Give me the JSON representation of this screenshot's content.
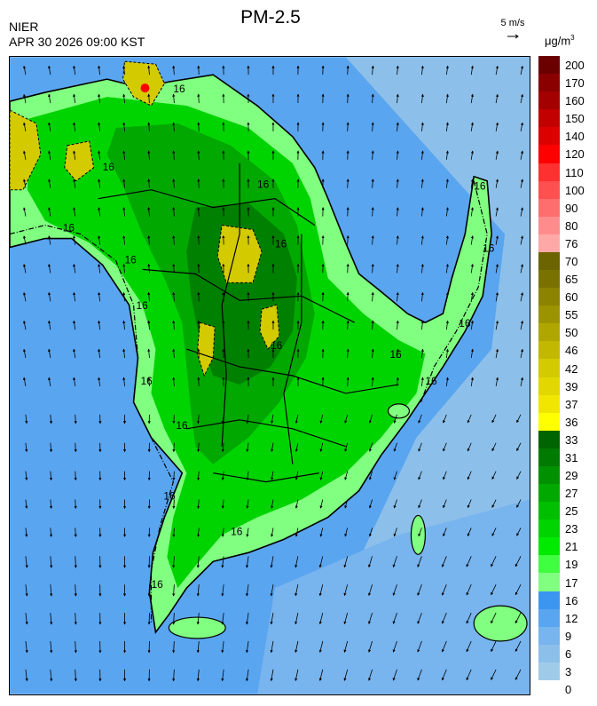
{
  "header": {
    "agency": "NIER",
    "datetime": "APR 30 2026 09:00 KST",
    "title": "PM-2.5",
    "wind_scale": "5 m/s",
    "unit_base": "μg/m",
    "unit_exp": "3"
  },
  "legend": {
    "levels": [
      {
        "label": "200",
        "color": "#6b0000"
      },
      {
        "label": "170",
        "color": "#8a0000"
      },
      {
        "label": "160",
        "color": "#a30000"
      },
      {
        "label": "150",
        "color": "#c20000"
      },
      {
        "label": "140",
        "color": "#dd0000"
      },
      {
        "label": "120",
        "color": "#ff0000"
      },
      {
        "label": "110",
        "color": "#ff3030"
      },
      {
        "label": "100",
        "color": "#ff5050"
      },
      {
        "label": "90",
        "color": "#ff6e6e"
      },
      {
        "label": "80",
        "color": "#ff8c8c"
      },
      {
        "label": "76",
        "color": "#ffa8a8"
      },
      {
        "label": "70",
        "color": "#6b6400"
      },
      {
        "label": "65",
        "color": "#7a7200"
      },
      {
        "label": "60",
        "color": "#8c8300"
      },
      {
        "label": "55",
        "color": "#9c9300"
      },
      {
        "label": "50",
        "color": "#b0a600"
      },
      {
        "label": "46",
        "color": "#c2b800"
      },
      {
        "label": "42",
        "color": "#d4ca00"
      },
      {
        "label": "39",
        "color": "#e2d800"
      },
      {
        "label": "37",
        "color": "#f0e600"
      },
      {
        "label": "36",
        "color": "#ffff00"
      },
      {
        "label": "33",
        "color": "#006400"
      },
      {
        "label": "31",
        "color": "#007a00"
      },
      {
        "label": "29",
        "color": "#009000"
      },
      {
        "label": "27",
        "color": "#00a800"
      },
      {
        "label": "25",
        "color": "#00be00"
      },
      {
        "label": "23",
        "color": "#00d400"
      },
      {
        "label": "21",
        "color": "#00ea00"
      },
      {
        "label": "19",
        "color": "#40ff40"
      },
      {
        "label": "17",
        "color": "#80ff80"
      },
      {
        "label": "16",
        "color": "#3c96f0"
      },
      {
        "label": "12",
        "color": "#5aa5f0"
      },
      {
        "label": "9",
        "color": "#78b4ee"
      },
      {
        "label": "6",
        "color": "#8cc0ea"
      },
      {
        "label": "3",
        "color": "#a0cbe8"
      },
      {
        "label": "0",
        "color": "#a0cbe8"
      }
    ]
  },
  "map": {
    "contour_label": "16",
    "sea_color": "#5aa5f0",
    "sea_far_color": "#8cc0ea",
    "land_low_color": "#80ff80",
    "land_mid_color": "#00d400",
    "land_high_color": "#00a800",
    "land_peak_color": "#008000",
    "hotspot_color": "#d4ca00",
    "hotspot_red": "#ff0000"
  }
}
